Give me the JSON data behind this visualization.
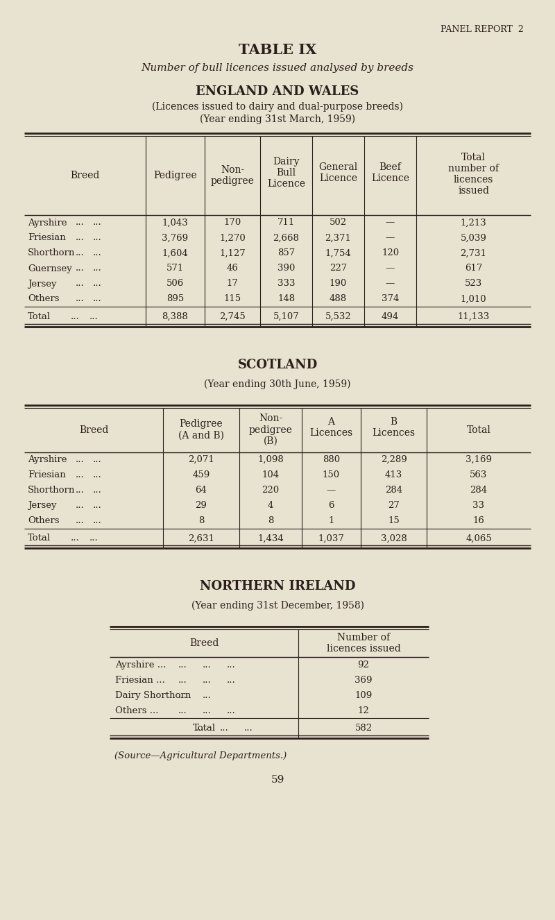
{
  "bg_color": "#e8e2d0",
  "text_color": "#2a1f1a",
  "panel_report": "PANEL REPORT  2",
  "title1": "TABLE IX",
  "title2": "Number of bull licences issued analysed by breeds",
  "section1_title": "ENGLAND AND WALES",
  "section1_sub1": "(Licences issued to dairy and dual-purpose breeds)",
  "section1_sub2": "(Year ending 31st March, 1959)",
  "ew_data": [
    [
      "Ayrshire",
      "...",
      "...",
      "1,043",
      "170",
      "711",
      "502",
      "—",
      "1,213"
    ],
    [
      "Friesian",
      "...",
      "...",
      "3,769",
      "1,270",
      "2,668",
      "2,371",
      "—",
      "5,039"
    ],
    [
      "Shorthorn",
      "...",
      "...",
      "1,604",
      "1,127",
      "857",
      "1,754",
      "120",
      "2,731"
    ],
    [
      "Guernsey",
      "...",
      "...",
      "571",
      "46",
      "390",
      "227",
      "—",
      "617"
    ],
    [
      "Jersey",
      "...",
      "...",
      "506",
      "17",
      "333",
      "190",
      "—",
      "523"
    ],
    [
      "Others",
      "...",
      "...",
      "895",
      "115",
      "148",
      "488",
      "374",
      "1,010"
    ]
  ],
  "ew_total": [
    "Total",
    "...",
    "...",
    "8,388",
    "2,745",
    "5,107",
    "5,532",
    "494",
    "11,133"
  ],
  "section2_title": "SCOTLAND",
  "section2_sub": "(Year ending 30th June, 1959)",
  "sc_data": [
    [
      "Ayrshire",
      "...",
      "...",
      "2,071",
      "1,098",
      "880",
      "2,289",
      "3,169"
    ],
    [
      "Friesian",
      "...",
      "...",
      "459",
      "104",
      "150",
      "413",
      "563"
    ],
    [
      "Shorthorn",
      "...",
      "...",
      "64",
      "220",
      "—",
      "284",
      "284"
    ],
    [
      "Jersey",
      "...",
      "...",
      "29",
      "4",
      "6",
      "27",
      "33"
    ],
    [
      "Others",
      "...",
      "...",
      "8",
      "8",
      "1",
      "15",
      "16"
    ]
  ],
  "sc_total": [
    "Total",
    "...",
    "...",
    "2,631",
    "1,434",
    "1,037",
    "3,028",
    "4,065"
  ],
  "section3_title": "NORTHERN IRELAND",
  "section3_sub": "(Year ending 31st December, 1958)",
  "ni_data": [
    [
      "Ayrshire ...",
      "...",
      "...",
      "...",
      "92"
    ],
    [
      "Friesian ...",
      "...",
      "...",
      "...",
      "369"
    ],
    [
      "Dairy Shorthorn",
      "...",
      "...",
      "",
      "109"
    ],
    [
      "Others ...",
      "...",
      "...",
      "...",
      "12"
    ]
  ],
  "ni_total": [
    "Total",
    "...",
    "...",
    "...",
    "582"
  ],
  "source": "(Source—Agricultural Departments.)",
  "page_num": "59"
}
